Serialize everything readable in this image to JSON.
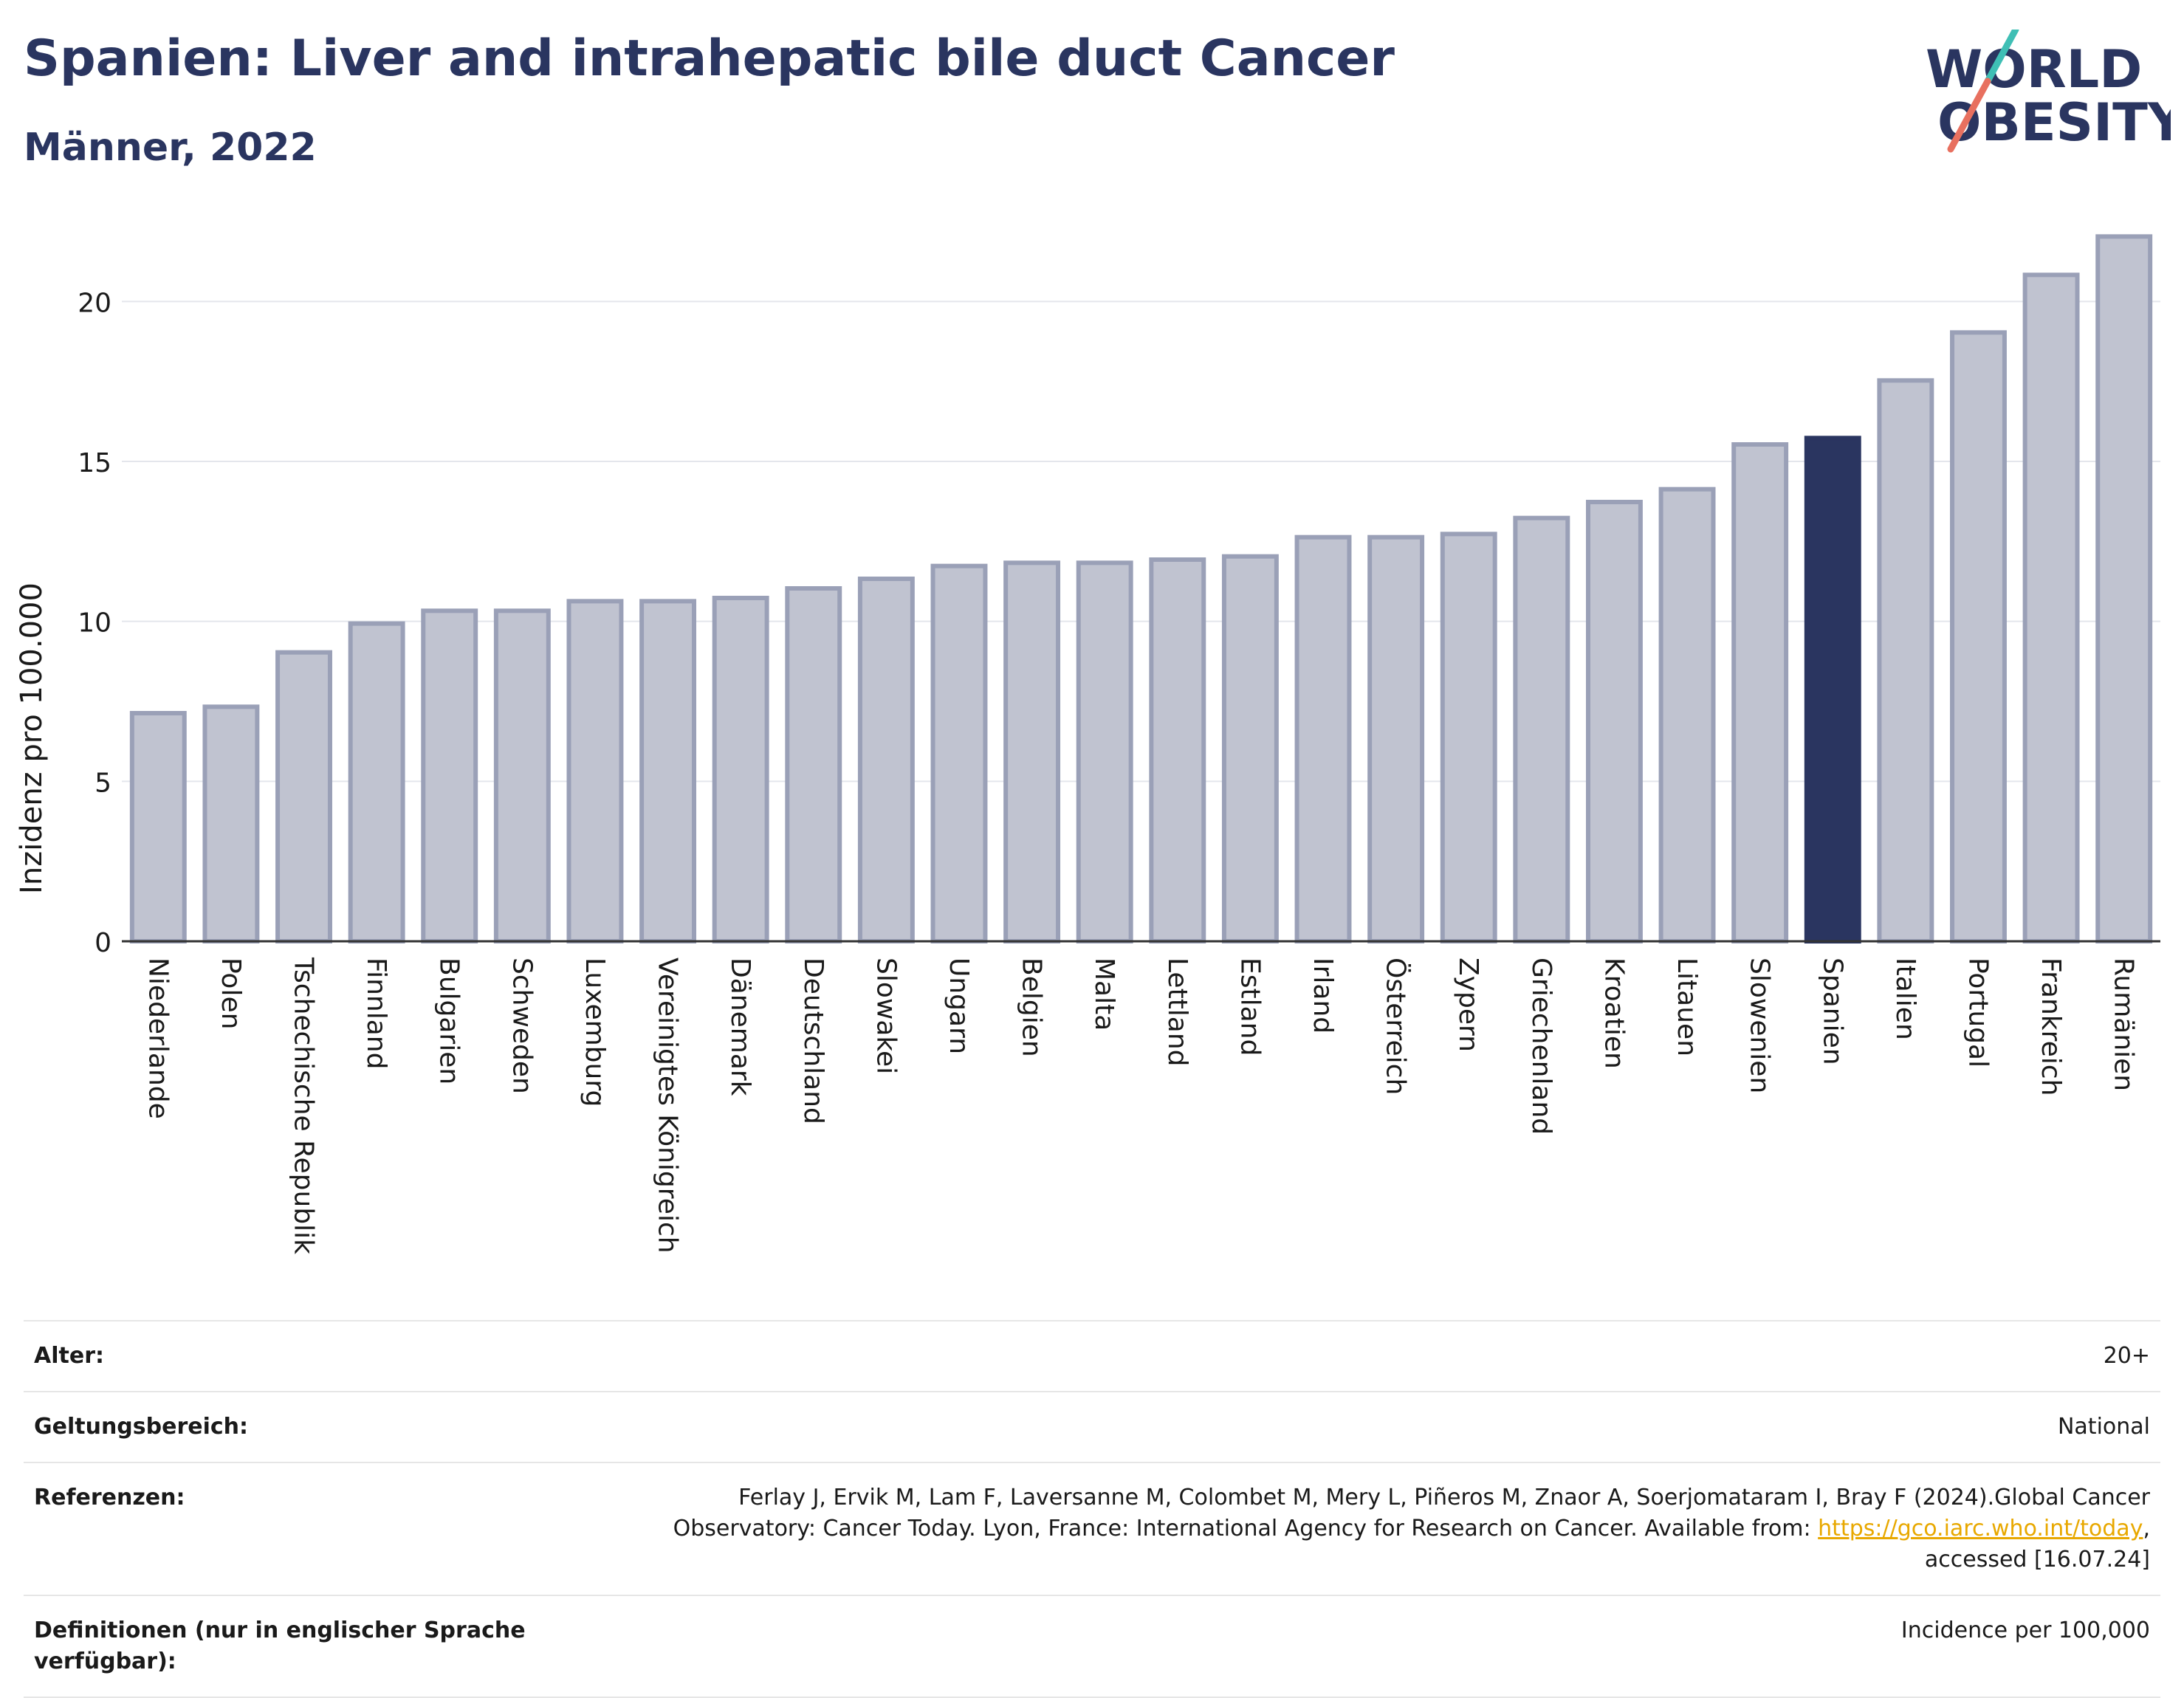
{
  "header": {
    "title": "Spanien: Liver and intrahepatic bile duct Cancer",
    "subtitle": "Männer, 2022"
  },
  "logo": {
    "line1": "WORLD",
    "line2": "OBESITY"
  },
  "chart_data": {
    "type": "bar",
    "ylabel": "Inzidenz pro 100.000",
    "ylim": [
      0,
      22.5
    ],
    "yticks": [
      0,
      5,
      10,
      15,
      20
    ],
    "grid": true,
    "highlight": "Spanien",
    "colors": {
      "bar": "#c0c3d0",
      "bar_edge": "#9aa0b7",
      "highlight": "#2a3560"
    },
    "categories": [
      "Niederlande",
      "Polen",
      "Tschechische Republik",
      "Finnland",
      "Bulgarien",
      "Schweden",
      "Luxemburg",
      "Vereinigtes Königreich",
      "Dänemark",
      "Deutschland",
      "Slowakei",
      "Ungarn",
      "Belgien",
      "Malta",
      "Lettland",
      "Estland",
      "Irland",
      "Österreich",
      "Zypern",
      "Griechenland",
      "Kroatien",
      "Litauen",
      "Slowenien",
      "Spanien",
      "Italien",
      "Portugal",
      "Frankreich",
      "Rumänien"
    ],
    "values": [
      7.2,
      7.4,
      9.1,
      10.0,
      10.4,
      10.4,
      10.7,
      10.7,
      10.8,
      11.1,
      11.4,
      11.8,
      11.9,
      11.9,
      12.0,
      12.1,
      12.7,
      12.7,
      12.8,
      13.3,
      13.8,
      14.2,
      15.6,
      15.8,
      17.6,
      19.1,
      20.9,
      22.1
    ]
  },
  "meta": {
    "rows": [
      {
        "key": "Alter:",
        "value": "20+"
      },
      {
        "key": "Geltungsbereich:",
        "value": "National"
      },
      {
        "key": "Referenzen:",
        "value_before": "Ferlay J, Ervik M, Lam F, Laversanne M, Colombet M, Mery L, Piñeros M, Znaor A, Soerjomataram I, Bray F (2024).Global Cancer Observatory: Cancer Today. Lyon, France: International Agency for Research on Cancer. Available from: ",
        "link": "https://gco.iarc.who.int/today",
        "value_after": ", accessed [16.07.24]"
      },
      {
        "key": "Definitionen (nur in englischer Sprache verfügbar):",
        "value": "Incidence per 100,000"
      }
    ]
  }
}
